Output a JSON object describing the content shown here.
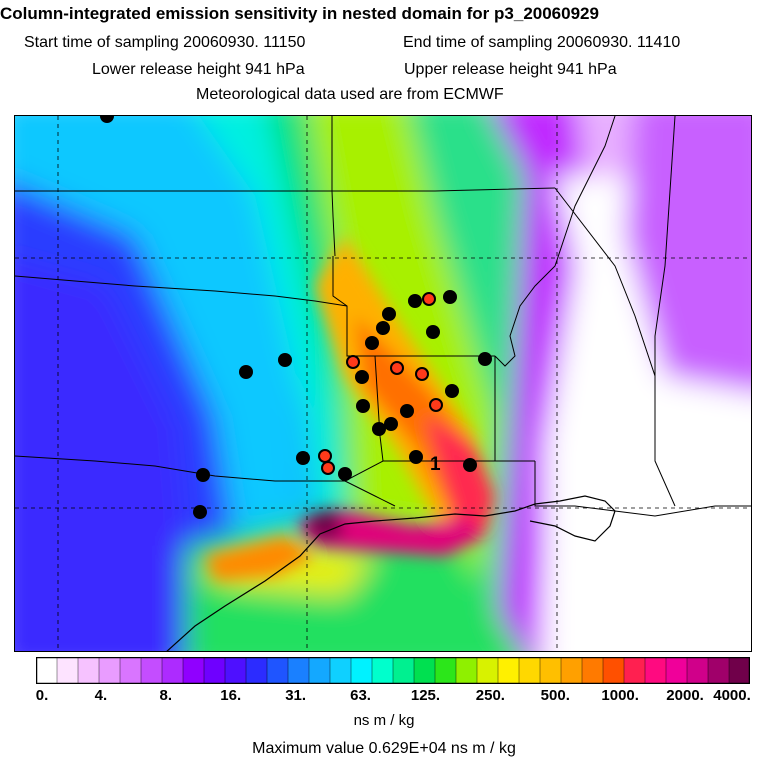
{
  "title": "Column-integrated emission sensitivity in nested domain for p3_20060929",
  "info": {
    "start": "Start time of sampling 20060930. 11150",
    "end": "End time of sampling 20060930. 11410",
    "lower": "Lower release height  941 hPa",
    "upper": "Upper release height  941 hPa",
    "met": "Meteorological data used are from ECMWF"
  },
  "map": {
    "label_marker": "1",
    "colors": {
      "lowest": "#ffffff",
      "violet": "#9a00ff",
      "blue": "#1e3cff",
      "cyan": "#00e5ff",
      "green": "#00e08a",
      "yellow": "#ffe100",
      "orange": "#ff8a00",
      "red": "#ff1a3a",
      "magenta": "#e0007a",
      "dark": "#5a0040"
    }
  },
  "legend": {
    "colors": [
      "#ffffff",
      "#fde3ff",
      "#f6c2ff",
      "#e99cff",
      "#d975ff",
      "#c44dff",
      "#ad2bff",
      "#9000ff",
      "#6f00ff",
      "#4e10ff",
      "#2c2cff",
      "#1f55ff",
      "#1a80ff",
      "#14a8ff",
      "#0fd0ff",
      "#00f2ff",
      "#00ffcc",
      "#00f090",
      "#00e050",
      "#2ce61a",
      "#8ff000",
      "#d8f200",
      "#fff000",
      "#ffd800",
      "#ffbf00",
      "#ffa000",
      "#ff7a00",
      "#ff5000",
      "#ff2050",
      "#ff0a80",
      "#f0009a",
      "#d0008a",
      "#a0006a",
      "#70004a"
    ],
    "ticks": [
      "0.",
      "4.",
      "8.",
      "16.",
      "31.",
      "63.",
      "125.",
      "250.",
      "500.",
      "1000.",
      "2000.",
      "4000."
    ],
    "unit": "ns m / kg"
  },
  "maximum": "Maximum value  0.629E+04 ns m / kg"
}
